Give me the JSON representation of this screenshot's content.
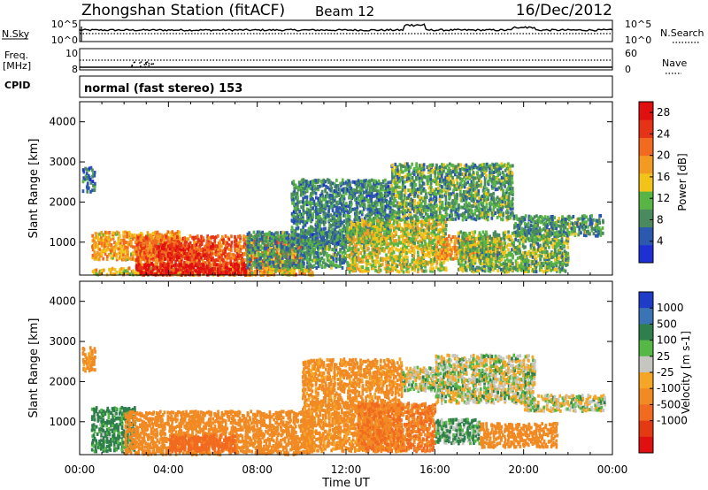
{
  "header": {
    "station": "Zhongshan Station (fitACF)",
    "beam": "Beam 12",
    "date": "16/Dec/2012"
  },
  "top_panels": {
    "nsky_label": "N.Sky",
    "nsky_tick_top": "10^5",
    "nsky_tick_bottom": "10^0",
    "nsearch_label": "N.Search",
    "nsearch_tick_top": "10^5",
    "nsearch_tick_bottom": "10^0",
    "freq_label": "Freq.",
    "freq_unit": "[MHz]",
    "freq_tick_top": "10",
    "freq_tick_bottom": "8",
    "nave_label": "Nave",
    "nave_tick_top": "60",
    "nave_tick_bottom": "0",
    "cpid_label": "CPID",
    "cpid_text": "normal (fast stereo) 153"
  },
  "x_axis": {
    "ticks": [
      "00:00",
      "04:00",
      "08:00",
      "12:00",
      "16:00",
      "20:00",
      "00:00"
    ],
    "label": "Time UT"
  },
  "colors": {
    "power": [
      "#1f2fd6",
      "#2d58b0",
      "#4a8a5e",
      "#58b545",
      "#f2c318",
      "#f39a22",
      "#f26a1f",
      "#e63216",
      "#e01010"
    ],
    "velocity_pos": [
      "#1f3cc8",
      "#3a74b4",
      "#2f7f4c",
      "#55b745"
    ],
    "velocity_gray": "#c6c6c0",
    "velocity_neg": [
      "#f5a626",
      "#f28a24",
      "#f26a1f",
      "#e43a14",
      "#e01010"
    ]
  },
  "chart_data": [
    {
      "type": "heatmap",
      "panel": "power",
      "ylabel": "Slant Range [km]",
      "yticks": [
        "1000",
        "2000",
        "3000",
        "4000"
      ],
      "ylim": [
        180,
        4500
      ],
      "xlim": [
        0,
        24
      ],
      "colorbar": {
        "label": "Power [dB]",
        "ticks": [
          "4",
          "8",
          "12",
          "16",
          "20",
          "24",
          "28"
        ],
        "range": [
          0,
          30
        ]
      },
      "regions": [
        {
          "t": [
            0.1,
            0.7
          ],
          "r": [
            2300,
            2900
          ],
          "v": 7
        },
        {
          "t": [
            0.5,
            4.5
          ],
          "r": [
            600,
            1300
          ],
          "v": 18
        },
        {
          "t": [
            2.5,
            10.0
          ],
          "r": [
            200,
            1200
          ],
          "v": 22
        },
        {
          "t": [
            3.5,
            6.0
          ],
          "r": [
            600,
            1000
          ],
          "v": 26
        },
        {
          "t": [
            0.5,
            10.5
          ],
          "r": [
            200,
            400
          ],
          "v": 16
        },
        {
          "t": [
            2.5,
            7.5
          ],
          "r": [
            200,
            500
          ],
          "v": 28
        },
        {
          "t": [
            7.5,
            12.0
          ],
          "r": [
            400,
            1300
          ],
          "v": 9
        },
        {
          "t": [
            9.5,
            14.0
          ],
          "r": [
            1000,
            2600
          ],
          "v": 8
        },
        {
          "t": [
            12.0,
            16.5
          ],
          "r": [
            300,
            1600
          ],
          "v": 14
        },
        {
          "t": [
            14.0,
            19.5
          ],
          "r": [
            1600,
            3000
          ],
          "v": 10
        },
        {
          "t": [
            16.0,
            19.0
          ],
          "r": [
            600,
            1200
          ],
          "v": 18
        },
        {
          "t": [
            17.0,
            22.0
          ],
          "r": [
            300,
            1300
          ],
          "v": 11
        },
        {
          "t": [
            19.5,
            23.6
          ],
          "r": [
            1200,
            1700
          ],
          "v": 9
        }
      ]
    },
    {
      "type": "heatmap",
      "panel": "velocity",
      "ylabel": "Slant Range [km]",
      "yticks": [
        "1000",
        "2000",
        "3000",
        "4000"
      ],
      "ylim": [
        180,
        4500
      ],
      "xlim": [
        0,
        24
      ],
      "colorbar": {
        "label": "Velocity [m s-1]",
        "ticks": [
          "1000",
          "500",
          "100",
          "25",
          "-25",
          "-100",
          "-500",
          "-1000"
        ]
      },
      "regions": [
        {
          "t": [
            0.1,
            0.7
          ],
          "r": [
            2300,
            2900
          ],
          "v": -150
        },
        {
          "t": [
            0.5,
            2.5
          ],
          "r": [
            300,
            1400
          ],
          "v": 100
        },
        {
          "t": [
            2.0,
            10.5
          ],
          "r": [
            200,
            1300
          ],
          "v": -200
        },
        {
          "t": [
            4.0,
            7.0
          ],
          "r": [
            300,
            700
          ],
          "v": -400
        },
        {
          "t": [
            10.0,
            14.5
          ],
          "r": [
            300,
            2600
          ],
          "v": -150
        },
        {
          "t": [
            12.5,
            16.0
          ],
          "r": [
            300,
            1500
          ],
          "v": -300
        },
        {
          "t": [
            14.5,
            16.0
          ],
          "r": [
            1800,
            2400
          ],
          "v": 0
        },
        {
          "t": [
            16.0,
            20.5
          ],
          "r": [
            1500,
            2700
          ],
          "v": 0
        },
        {
          "t": [
            20.0,
            23.7
          ],
          "r": [
            1300,
            1700
          ],
          "v": 0
        },
        {
          "t": [
            16.0,
            18.0
          ],
          "r": [
            500,
            1100
          ],
          "v": 60
        },
        {
          "t": [
            18.0,
            21.5
          ],
          "r": [
            400,
            1000
          ],
          "v": -200
        }
      ]
    }
  ]
}
